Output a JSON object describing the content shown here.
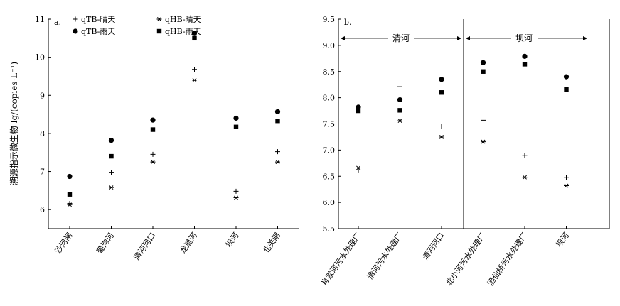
{
  "chart_data": [
    {
      "type": "scatter",
      "panel_label": "a.",
      "ylabel": "溯源指示微生物 lg/(copies·L⁻¹)",
      "ylim": [
        5.5,
        11
      ],
      "yticks": [
        6,
        7,
        8,
        9,
        10,
        11
      ],
      "categories": [
        "沙河闸",
        "葡沟河",
        "清河河口",
        "龙道河",
        "坝河",
        "北关闸"
      ],
      "series": [
        {
          "name": "qTB-晴天",
          "marker": "plus",
          "values": [
            6.16,
            6.98,
            7.45,
            9.68,
            6.48,
            7.52
          ]
        },
        {
          "name": "qHB-晴天",
          "marker": "asterisk",
          "values": [
            6.13,
            6.58,
            7.25,
            9.4,
            6.31,
            7.25
          ]
        },
        {
          "name": "qTB-雨天",
          "marker": "circle",
          "values": [
            6.87,
            7.82,
            8.35,
            10.63,
            8.4,
            8.57
          ]
        },
        {
          "name": "qHB-雨天",
          "marker": "square",
          "values": [
            6.4,
            7.4,
            8.1,
            10.5,
            8.17,
            8.33
          ]
        }
      ]
    },
    {
      "type": "scatter",
      "panel_label": "b.",
      "ylim": [
        5.5,
        9.5
      ],
      "yticks": [
        "5.5",
        "6.0",
        "6.5",
        "7.0",
        "7.5",
        "8.0",
        "8.5",
        "9.0",
        "9.5"
      ],
      "categories": [
        "肖家河污水处理厂",
        "清河污水处理厂",
        "清河河口",
        "北小河污水处理厂",
        "酒仙桥污水处理厂",
        "坝河"
      ],
      "regions": [
        "清河",
        "坝河"
      ],
      "series": [
        {
          "name": "qTB-晴天",
          "marker": "plus",
          "values": [
            6.62,
            8.21,
            7.46,
            7.57,
            6.9,
            6.48
          ]
        },
        {
          "name": "qHB-晴天",
          "marker": "asterisk",
          "values": [
            6.66,
            7.56,
            7.25,
            7.16,
            6.48,
            6.32
          ]
        },
        {
          "name": "qTB-雨天",
          "marker": "circle",
          "values": [
            7.82,
            7.96,
            8.35,
            8.67,
            8.79,
            8.4
          ]
        },
        {
          "name": "qHB-雨天",
          "marker": "square",
          "values": [
            7.75,
            7.76,
            8.1,
            8.5,
            8.64,
            8.16
          ]
        }
      ]
    }
  ]
}
